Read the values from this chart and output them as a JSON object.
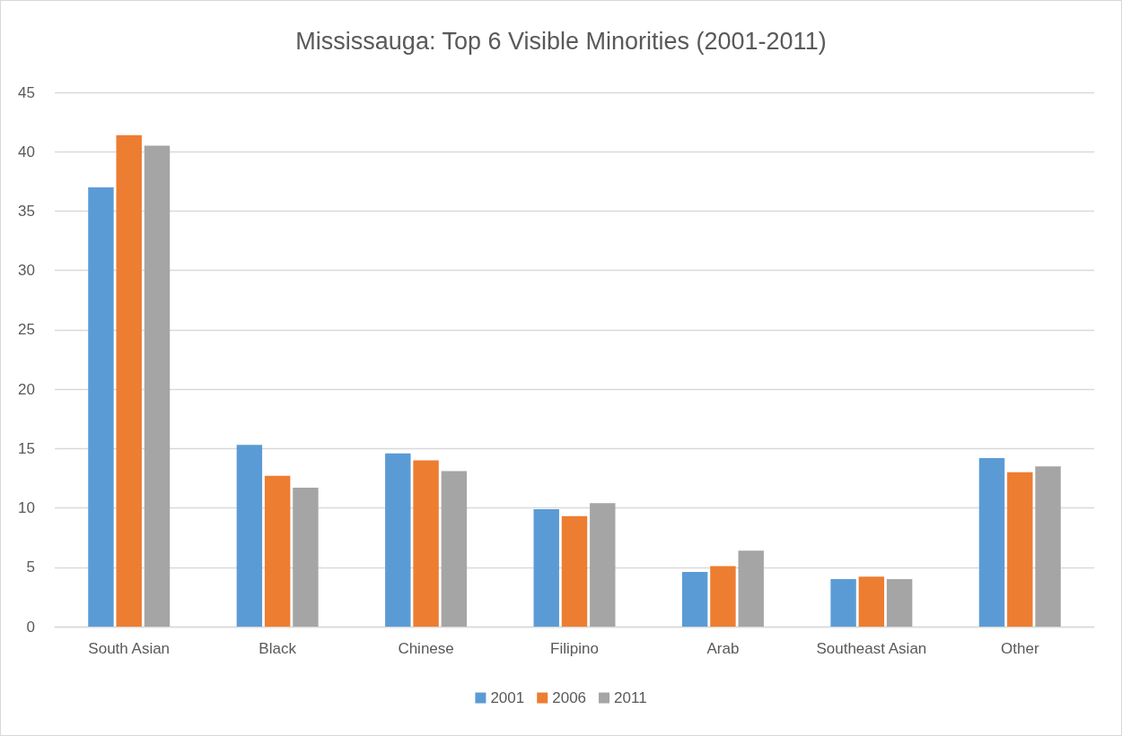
{
  "chart_data": {
    "type": "bar",
    "title": "Mississauga: Top 6 Visible Minorities (2001-2011)",
    "categories": [
      "South Asian",
      "Black",
      "Chinese",
      "Filipino",
      "Arab",
      "Southeast Asian",
      "Other"
    ],
    "series": [
      {
        "name": "2001",
        "color": "#5b9bd5",
        "values": [
          37.0,
          15.3,
          14.6,
          9.9,
          4.6,
          4.0,
          14.2
        ]
      },
      {
        "name": "2006",
        "color": "#ed7d31",
        "values": [
          41.4,
          12.7,
          14.0,
          9.3,
          5.1,
          4.2,
          13.0
        ]
      },
      {
        "name": "2011",
        "color": "#a5a5a5",
        "values": [
          40.5,
          11.7,
          13.1,
          10.4,
          6.4,
          4.0,
          13.5
        ]
      }
    ],
    "ylim": [
      0,
      45
    ],
    "yticks": [
      0,
      5,
      10,
      15,
      20,
      25,
      30,
      35,
      40,
      45
    ],
    "grid": "y",
    "legend": "bottom"
  }
}
